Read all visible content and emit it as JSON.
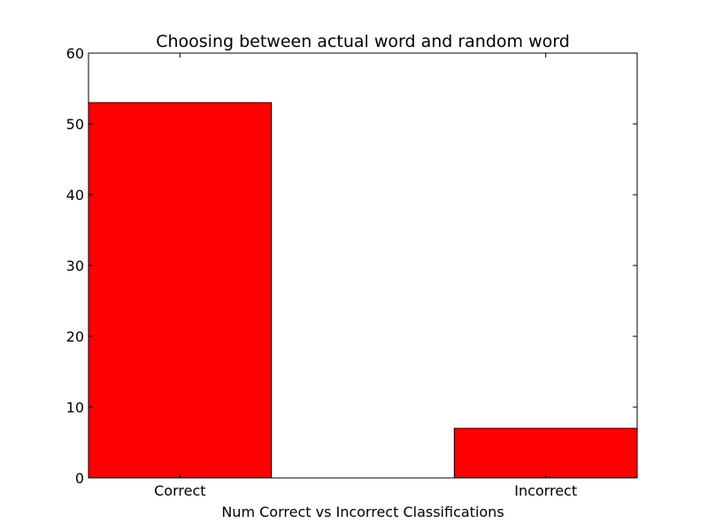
{
  "chart_data": {
    "type": "bar",
    "title": "Choosing between actual word and random word",
    "xlabel": "Num Correct vs Incorrect Classifications",
    "ylabel": "",
    "categories": [
      "Correct",
      "Incorrect"
    ],
    "values": [
      53,
      7
    ],
    "ylim": [
      0,
      60
    ],
    "yticks": [
      "0",
      "10",
      "20",
      "30",
      "40",
      "50",
      "60"
    ],
    "bar_color": "#ff0000",
    "grid": false,
    "legend": "none"
  }
}
